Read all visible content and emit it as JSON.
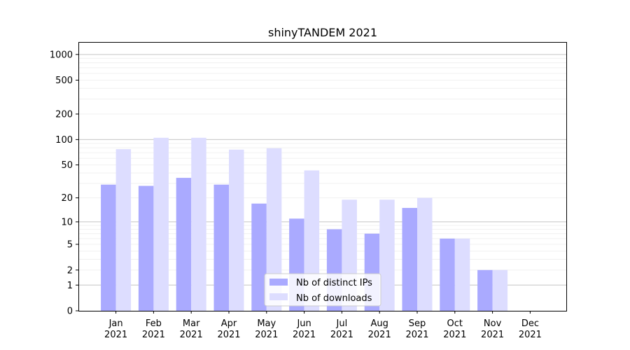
{
  "chart_data": {
    "type": "bar",
    "title": "shinyTANDEM 2021",
    "xlabel": "",
    "ylabel": "",
    "categories": [
      {
        "month": "Jan",
        "year": "2021"
      },
      {
        "month": "Feb",
        "year": "2021"
      },
      {
        "month": "Mar",
        "year": "2021"
      },
      {
        "month": "Apr",
        "year": "2021"
      },
      {
        "month": "May",
        "year": "2021"
      },
      {
        "month": "Jun",
        "year": "2021"
      },
      {
        "month": "Jul",
        "year": "2021"
      },
      {
        "month": "Aug",
        "year": "2021"
      },
      {
        "month": "Sep",
        "year": "2021"
      },
      {
        "month": "Oct",
        "year": "2021"
      },
      {
        "month": "Nov",
        "year": "2021"
      },
      {
        "month": "Dec",
        "year": "2021"
      }
    ],
    "series": [
      {
        "name": "Nb of distinct IPs",
        "color": "#aaaaff",
        "values": [
          29,
          28,
          35,
          29,
          17,
          11,
          8,
          7,
          15,
          6,
          2,
          0
        ]
      },
      {
        "name": "Nb of downloads",
        "color": "#ddddff",
        "values": [
          77,
          105,
          105,
          76,
          79,
          43,
          19,
          19,
          20,
          6,
          2,
          0
        ]
      }
    ],
    "y_scale": "log1p",
    "yticks": [
      0,
      1,
      2,
      5,
      10,
      20,
      50,
      100,
      200,
      500,
      1000
    ],
    "ytick_labels": [
      "0",
      "1",
      "2",
      "5",
      "10",
      "20",
      "50",
      "100",
      "200",
      "500",
      "1000"
    ],
    "ylim": [
      0,
      1400
    ],
    "grid": true,
    "legend_position": "bottom-center"
  }
}
